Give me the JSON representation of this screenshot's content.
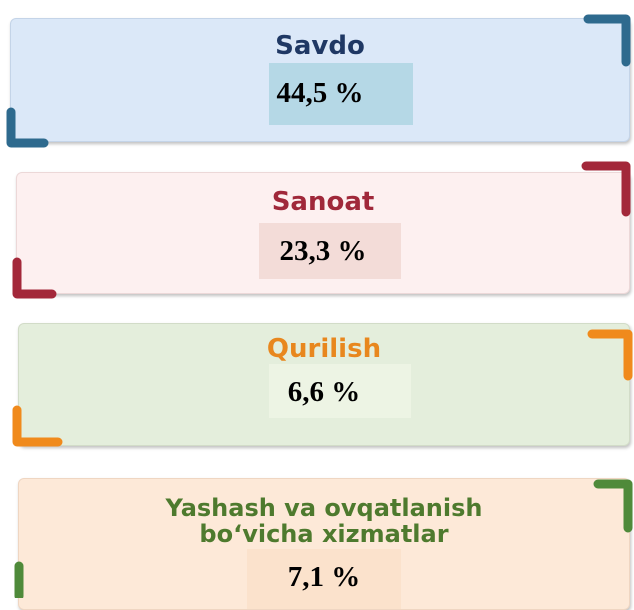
{
  "cards": [
    {
      "title_lines": [
        "Savdo"
      ],
      "value": "44,5 %"
    },
    {
      "title_lines": [
        "Sanoat"
      ],
      "value": "23,3 %"
    },
    {
      "title_lines": [
        "Qurilish"
      ],
      "value": "6,6 %"
    },
    {
      "title_lines": [
        "Yashash va ovqatlanish",
        "bo‘vicha xizmatlar"
      ],
      "value": "7,1 %"
    }
  ]
}
